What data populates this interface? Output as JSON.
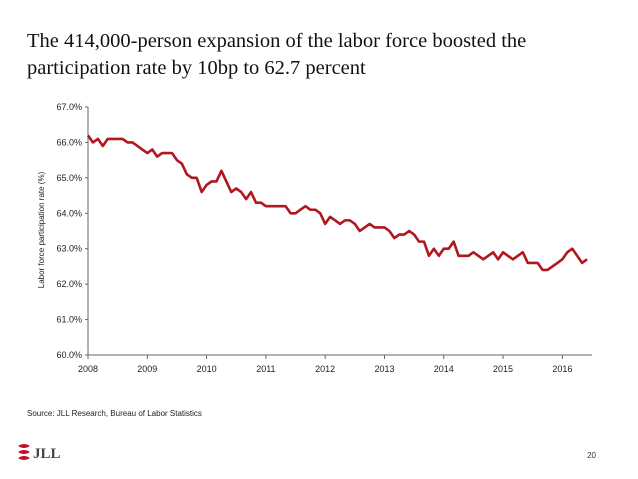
{
  "chart_data": {
    "type": "line",
    "title_lines": [
      "The 414,000-person expansion of the labor force boosted the",
      "participation rate by 10bp to 62.7 percent"
    ],
    "y_label": "Labor force participation rate (%)",
    "source": "Source: JLL Research, Bureau of Labor Statistics",
    "page_number": "20",
    "logo": "JLL",
    "xlim": [
      2008,
      2016.5
    ],
    "xticks": [
      2008,
      2009,
      2010,
      2011,
      2012,
      2013,
      2014,
      2015,
      2016
    ],
    "ylim": [
      60,
      67
    ],
    "yticks": [
      {
        "value": 60,
        "label": "60.0%"
      },
      {
        "value": 61,
        "label": "61.0%"
      },
      {
        "value": 62,
        "label": "62.0%"
      },
      {
        "value": 63,
        "label": "63.0%"
      },
      {
        "value": 64,
        "label": "64.0%"
      },
      {
        "value": 65,
        "label": "65.0%"
      },
      {
        "value": 66,
        "label": "66.0%"
      },
      {
        "value": 67,
        "label": "67.0%"
      }
    ],
    "grid": false,
    "x": [
      2008,
      2008.083,
      2008.167,
      2008.25,
      2008.333,
      2008.417,
      2008.5,
      2008.583,
      2008.667,
      2008.75,
      2008.833,
      2008.917,
      2009,
      2009.083,
      2009.167,
      2009.25,
      2009.333,
      2009.417,
      2009.5,
      2009.583,
      2009.667,
      2009.75,
      2009.833,
      2009.917,
      2010,
      2010.083,
      2010.167,
      2010.25,
      2010.333,
      2010.417,
      2010.5,
      2010.583,
      2010.667,
      2010.75,
      2010.833,
      2010.917,
      2011,
      2011.083,
      2011.167,
      2011.25,
      2011.333,
      2011.417,
      2011.5,
      2011.583,
      2011.667,
      2011.75,
      2011.833,
      2011.917,
      2012,
      2012.083,
      2012.167,
      2012.25,
      2012.333,
      2012.417,
      2012.5,
      2012.583,
      2012.667,
      2012.75,
      2012.833,
      2012.917,
      2013,
      2013.083,
      2013.167,
      2013.25,
      2013.333,
      2013.417,
      2013.5,
      2013.583,
      2013.667,
      2013.75,
      2013.833,
      2013.917,
      2014,
      2014.083,
      2014.167,
      2014.25,
      2014.333,
      2014.417,
      2014.5,
      2014.583,
      2014.667,
      2014.75,
      2014.833,
      2014.917,
      2015,
      2015.083,
      2015.167,
      2015.25,
      2015.333,
      2015.417,
      2015.5,
      2015.583,
      2015.667,
      2015.75,
      2015.833,
      2015.917,
      2016,
      2016.083,
      2016.167,
      2016.25,
      2016.333,
      2016.417
    ],
    "series": [
      {
        "color": "#b0171f",
        "values": [
          66.2,
          66.0,
          66.1,
          65.9,
          66.1,
          66.1,
          66.1,
          66.1,
          66.0,
          66.0,
          65.9,
          65.8,
          65.7,
          65.8,
          65.6,
          65.7,
          65.7,
          65.7,
          65.5,
          65.4,
          65.1,
          65.0,
          65.0,
          64.6,
          64.8,
          64.9,
          64.9,
          65.2,
          64.9,
          64.6,
          64.7,
          64.6,
          64.4,
          64.6,
          64.3,
          64.3,
          64.2,
          64.2,
          64.2,
          64.2,
          64.2,
          64.0,
          64.0,
          64.1,
          64.2,
          64.1,
          64.1,
          64.0,
          63.7,
          63.9,
          63.8,
          63.7,
          63.8,
          63.8,
          63.7,
          63.5,
          63.6,
          63.7,
          63.6,
          63.6,
          63.6,
          63.5,
          63.3,
          63.4,
          63.4,
          63.5,
          63.4,
          63.2,
          63.2,
          62.8,
          63.0,
          62.8,
          63.0,
          63.0,
          63.2,
          62.8,
          62.8,
          62.8,
          62.9,
          62.8,
          62.7,
          62.8,
          62.9,
          62.7,
          62.9,
          62.8,
          62.7,
          62.8,
          62.9,
          62.6,
          62.6,
          62.6,
          62.4,
          62.4,
          62.5,
          62.6,
          62.7,
          62.9,
          63.0,
          62.8,
          62.6,
          62.7
        ]
      }
    ]
  }
}
